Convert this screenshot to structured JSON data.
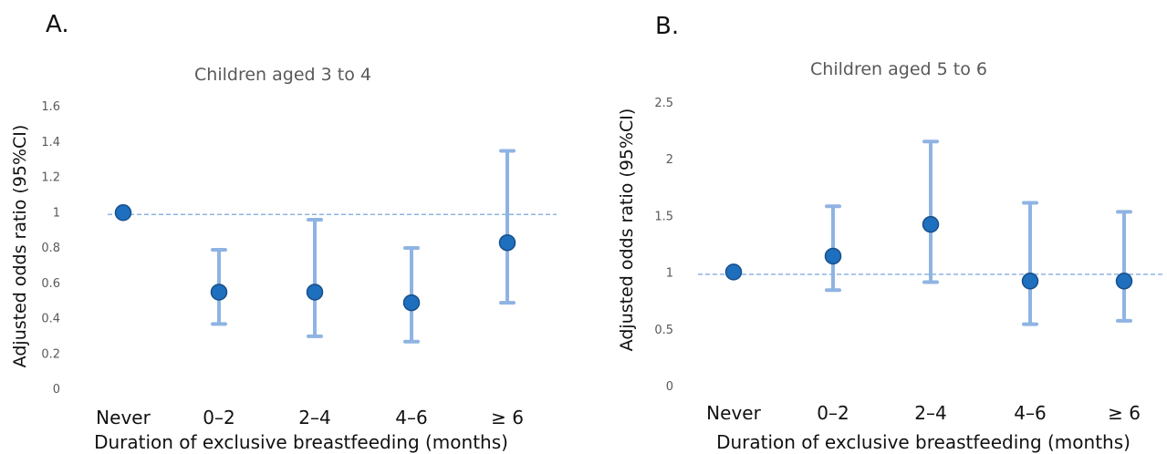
{
  "panels": [
    {
      "letter": "A."
    },
    {
      "letter": "B."
    }
  ],
  "colors": {
    "marker_fill": "#1f6fbf",
    "marker_stroke": "#174f8a",
    "error_bar": "#8fb4e3",
    "reference_line": "#8fb4e3"
  },
  "chart_data": [
    {
      "type": "scatter",
      "title": "Children aged 3 to 4",
      "xlabel": "Duration of exclusive breastfeeding (months)",
      "ylabel": "Adjusted odds ratio (95%CI)",
      "categories": [
        "Never",
        "0–2",
        "2–4",
        "4–6",
        "≥ 6"
      ],
      "yticks": [
        "0",
        "0.2",
        "0.4",
        "0.6",
        "0.8",
        "1",
        "1.2",
        "1.4",
        "1.6"
      ],
      "ylim": [
        0,
        1.6
      ],
      "values": [
        1.0,
        0.55,
        0.55,
        0.49,
        0.83
      ],
      "lower": [
        null,
        0.37,
        0.3,
        0.27,
        0.49
      ],
      "upper": [
        null,
        0.79,
        0.96,
        0.8,
        1.35
      ],
      "reference_line": 0.99,
      "grid": false
    },
    {
      "type": "scatter",
      "title": "Children aged 5 to 6",
      "xlabel": "Duration of exclusive breastfeeding (months)",
      "ylabel": "Adjusted odds ratio (95%CI)",
      "categories": [
        "Never",
        "0–2",
        "2–4",
        "4–6",
        "≥ 6"
      ],
      "yticks": [
        "0",
        "0.5",
        "1",
        "1.5",
        "2",
        "2.5"
      ],
      "ylim": [
        0,
        2.5
      ],
      "values": [
        1.01,
        1.15,
        1.43,
        0.93,
        0.93
      ],
      "lower": [
        null,
        0.85,
        0.92,
        0.55,
        0.58
      ],
      "upper": [
        null,
        1.59,
        2.16,
        1.62,
        1.54
      ],
      "reference_line": 0.99,
      "grid": false
    }
  ]
}
